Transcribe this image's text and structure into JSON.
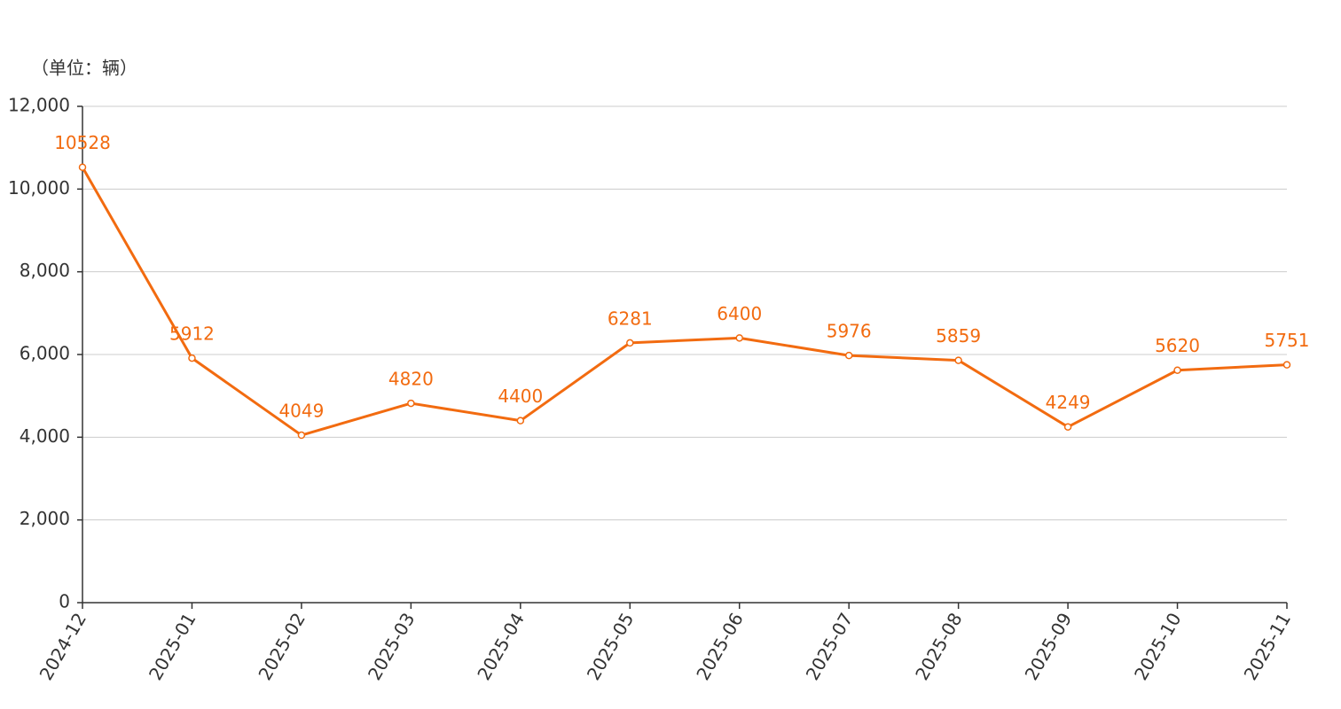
{
  "chart_data": {
    "type": "line",
    "unit_label": "（单位：辆）",
    "categories": [
      "2024-12",
      "2025-01",
      "2025-02",
      "2025-03",
      "2025-04",
      "2025-05",
      "2025-06",
      "2025-07",
      "2025-08",
      "2025-09",
      "2025-10",
      "2025-11"
    ],
    "values": [
      10528,
      5912,
      4049,
      4820,
      4400,
      6281,
      6400,
      5976,
      5859,
      4249,
      5620,
      5751
    ],
    "color": "#f26b10",
    "ylim": [
      0,
      12000
    ],
    "yticks": [
      0,
      {
        "value": 2000,
        "label": "2,000"
      },
      {
        "value": 4000,
        "label": "4,000"
      },
      {
        "value": 6000,
        "label": "6,000"
      },
      {
        "value": 8000,
        "label": "8,000"
      },
      {
        "value": 10000,
        "label": "10,000"
      },
      {
        "value": 12000,
        "label": "12,000"
      }
    ],
    "grid": true
  }
}
